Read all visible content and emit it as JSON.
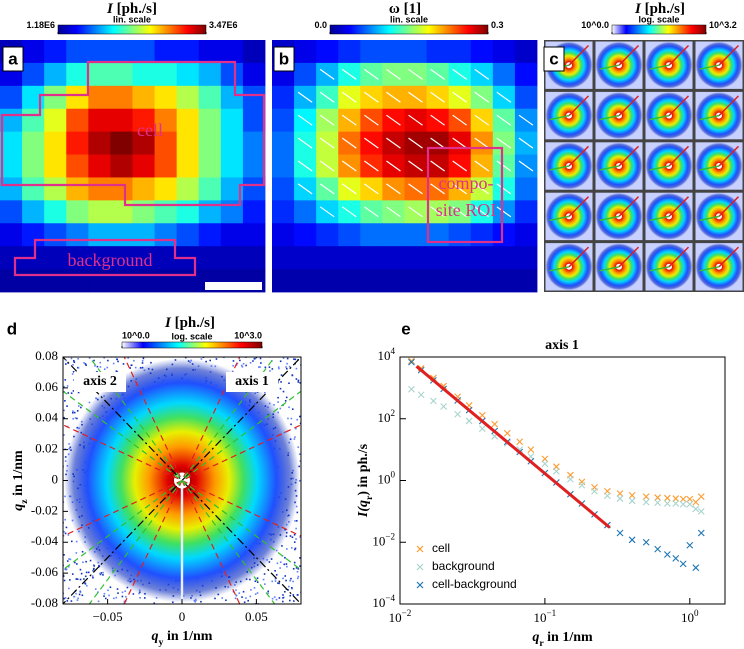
{
  "chart_data": [
    {
      "type": "heatmap",
      "label": "a",
      "colorbar": {
        "title": [
          {
            "text": "I",
            "italic": true
          },
          {
            "text": " [ph./s]"
          }
        ],
        "scale_label": "lin. scale",
        "lim": [
          1180000.0,
          3470000.0
        ],
        "ticks": [
          {
            "value": 1180000.0,
            "label": "1.18E6"
          },
          {
            "value": 3470000.0,
            "label": "3.47E6"
          }
        ]
      },
      "annotations": [
        "cell",
        "background"
      ],
      "values": [
        [
          1290000.0,
          1410000.0,
          1520000.0,
          1640000.0,
          1640000.0,
          1640000.0,
          1640000.0,
          1520000.0,
          1520000.0,
          1410000.0,
          1410000.0,
          1290000.0
        ],
        [
          1410000.0,
          1640000.0,
          1870000.0,
          2100000.0,
          2210000.0,
          2210000.0,
          2100000.0,
          2100000.0,
          1980000.0,
          1870000.0,
          1640000.0,
          1410000.0
        ],
        [
          1640000.0,
          1980000.0,
          2330000.0,
          2670000.0,
          2900000.0,
          2900000.0,
          2780000.0,
          2670000.0,
          2440000.0,
          2210000.0,
          1870000.0,
          1640000.0
        ],
        [
          1870000.0,
          2210000.0,
          2550000.0,
          3010000.0,
          3240000.0,
          3240000.0,
          3130000.0,
          2900000.0,
          2670000.0,
          2330000.0,
          1980000.0,
          1640000.0
        ],
        [
          1980000.0,
          2330000.0,
          2670000.0,
          3130000.0,
          3360000.0,
          3470000.0,
          3360000.0,
          3010000.0,
          2670000.0,
          2330000.0,
          1980000.0,
          1750000.0
        ],
        [
          1980000.0,
          2330000.0,
          2670000.0,
          3010000.0,
          3240000.0,
          3360000.0,
          3240000.0,
          3010000.0,
          2670000.0,
          2330000.0,
          1980000.0,
          1750000.0
        ],
        [
          1870000.0,
          2210000.0,
          2440000.0,
          2780000.0,
          2900000.0,
          2900000.0,
          2780000.0,
          2670000.0,
          2440000.0,
          2210000.0,
          1870000.0,
          1640000.0
        ],
        [
          1640000.0,
          1870000.0,
          2100000.0,
          2330000.0,
          2440000.0,
          2440000.0,
          2330000.0,
          2210000.0,
          2100000.0,
          1870000.0,
          1750000.0,
          1520000.0
        ],
        [
          1410000.0,
          1520000.0,
          1640000.0,
          1750000.0,
          1870000.0,
          1870000.0,
          1870000.0,
          1750000.0,
          1640000.0,
          1520000.0,
          1410000.0,
          1410000.0
        ],
        [
          1290000.0,
          1290000.0,
          1290000.0,
          1290000.0,
          1290000.0,
          1290000.0,
          1290000.0,
          1290000.0,
          1290000.0,
          1290000.0,
          1290000.0,
          1290000.0
        ],
        [
          1230000.0,
          1230000.0,
          1230000.0,
          1230000.0,
          1230000.0,
          1230000.0,
          1230000.0,
          1230000.0,
          1230000.0,
          1230000.0,
          1230000.0,
          1230000.0
        ]
      ]
    },
    {
      "type": "heatmap",
      "label": "b",
      "colorbar": {
        "title": [
          {
            "text": "ω [1]"
          }
        ],
        "scale_label": "lin. scale",
        "lim": [
          0,
          0.3
        ],
        "ticks": [
          {
            "value": 0,
            "label": "0.0"
          },
          {
            "value": 0.3,
            "label": "0.3"
          }
        ]
      },
      "annotations": [
        "compo-",
        "site ROI"
      ],
      "segment_min": 0.08,
      "segment_color": "#ffffff",
      "values": [
        [
          0.02,
          0.03,
          0.04,
          0.05,
          0.06,
          0.06,
          0.06,
          0.05,
          0.05,
          0.04,
          0.03,
          0.02
        ],
        [
          0.03,
          0.06,
          0.09,
          0.12,
          0.14,
          0.15,
          0.15,
          0.14,
          0.12,
          0.1,
          0.07,
          0.04
        ],
        [
          0.05,
          0.09,
          0.13,
          0.18,
          0.2,
          0.21,
          0.21,
          0.2,
          0.18,
          0.15,
          0.1,
          0.06
        ],
        [
          0.06,
          0.11,
          0.16,
          0.21,
          0.24,
          0.26,
          0.27,
          0.26,
          0.24,
          0.2,
          0.14,
          0.08
        ],
        [
          0.07,
          0.12,
          0.17,
          0.23,
          0.26,
          0.28,
          0.29,
          0.29,
          0.27,
          0.22,
          0.15,
          0.09
        ],
        [
          0.07,
          0.12,
          0.17,
          0.22,
          0.25,
          0.27,
          0.28,
          0.28,
          0.26,
          0.21,
          0.14,
          0.08
        ],
        [
          0.06,
          0.1,
          0.14,
          0.18,
          0.2,
          0.22,
          0.23,
          0.23,
          0.21,
          0.17,
          0.12,
          0.07
        ],
        [
          0.05,
          0.07,
          0.1,
          0.12,
          0.14,
          0.15,
          0.16,
          0.16,
          0.15,
          0.12,
          0.08,
          0.05
        ],
        [
          0.03,
          0.04,
          0.05,
          0.06,
          0.07,
          0.07,
          0.07,
          0.07,
          0.06,
          0.05,
          0.04,
          0.03
        ],
        [
          0.02,
          0.02,
          0.02,
          0.02,
          0.02,
          0.02,
          0.02,
          0.02,
          0.02,
          0.02,
          0.02,
          0.02
        ],
        [
          0.01,
          0.01,
          0.01,
          0.01,
          0.01,
          0.01,
          0.01,
          0.01,
          0.01,
          0.01,
          0.01,
          0.01
        ]
      ]
    },
    {
      "type": "image_grid",
      "label": "c",
      "rows": 5,
      "cols": 4,
      "colorbar": {
        "title": [
          {
            "text": "I",
            "italic": true
          },
          {
            "text": " [ph./s]"
          }
        ],
        "scale_label": "log. scale",
        "log": true,
        "lim": [
          1,
          1585
        ],
        "ticks": [
          {
            "value": 1,
            "label": "10^0.0"
          },
          {
            "value": 1585,
            "label": "10^3.2"
          }
        ]
      }
    },
    {
      "type": "image",
      "label": "d",
      "colorbar": {
        "title": [
          {
            "text": "I",
            "italic": true
          },
          {
            "text": " [ph./s]"
          }
        ],
        "scale_label": "log. scale",
        "log": true,
        "lim": [
          1,
          1000
        ],
        "ticks": [
          {
            "value": 1,
            "label": "10^0.0"
          },
          {
            "value": 1000,
            "label": "10^3.0"
          }
        ]
      },
      "xlabel": [
        {
          "text": "q",
          "italic": true
        },
        {
          "text": "y",
          "sub": true
        },
        {
          "text": " in 1/nm"
        }
      ],
      "ylabel": [
        {
          "text": "q",
          "italic": true
        },
        {
          "text": "z",
          "sub": true
        },
        {
          "text": " in 1/nm"
        }
      ],
      "xlim": [
        -0.08,
        0.08
      ],
      "ylim": [
        -0.08,
        0.08
      ],
      "xticks": [
        {
          "value": -0.05,
          "label": "−0.05"
        },
        0,
        0.05
      ],
      "yticks": [
        -0.08,
        -0.06,
        -0.04,
        -0.02,
        0,
        0.02,
        0.04,
        0.06,
        0.08
      ],
      "annotations": [
        "axis 2",
        "axis 1"
      ]
    },
    {
      "type": "scatter",
      "label": "e",
      "title": "axis 1",
      "xlog": true,
      "ylog": true,
      "xlim": [
        0.01,
        1.75
      ],
      "ylim": [
        0.0001,
        10000
      ],
      "xticks": [
        {
          "value": 0.01,
          "label": "10",
          "sup": "−2"
        },
        {
          "value": 0.1,
          "label": "10",
          "sup": "−1"
        },
        {
          "value": 1,
          "label": "10",
          "sup": "0"
        }
      ],
      "yticks": [
        {
          "value": 0.0001,
          "label": "10",
          "sup": "−4"
        },
        {
          "value": 0.01,
          "label": "10",
          "sup": "−2"
        },
        {
          "value": 1,
          "label": "10",
          "sup": "0"
        },
        {
          "value": 100,
          "label": "10",
          "sup": "2"
        },
        {
          "value": 10000,
          "label": "10",
          "sup": "4"
        }
      ],
      "xlabel": [
        {
          "text": "q",
          "italic": true
        },
        {
          "text": "r",
          "sub": true
        },
        {
          "text": " in 1/nm"
        }
      ],
      "ylabel": [
        {
          "text": "I(q",
          "italic": true
        },
        {
          "text": "r",
          "sub": true
        },
        {
          "text": ") in ph./s"
        }
      ],
      "legend": "lower left",
      "x": [
        0.012,
        0.014,
        0.017,
        0.02,
        0.025,
        0.03,
        0.037,
        0.045,
        0.055,
        0.067,
        0.08,
        0.1,
        0.12,
        0.15,
        0.18,
        0.22,
        0.27,
        0.33,
        0.4,
        0.5,
        0.6,
        0.7,
        0.8,
        0.9,
        1.0,
        1.1,
        1.2
      ],
      "series": [
        {
          "name": "cell",
          "color": "#ff9a2e",
          "values": [
            7500,
            4300,
            2100,
            1150,
            520,
            270,
            130,
            67,
            34,
            18,
            10,
            5,
            2.8,
            1.5,
            0.9,
            0.6,
            0.45,
            0.38,
            0.33,
            0.3,
            0.28,
            0.27,
            0.26,
            0.25,
            0.25,
            0.2,
            0.3
          ]
        },
        {
          "name": "background",
          "color": "#a8d4cc",
          "values": [
            900,
            600,
            380,
            250,
            140,
            85,
            48,
            27,
            16,
            10,
            6,
            3.5,
            2,
            1.1,
            0.7,
            0.45,
            0.32,
            0.26,
            0.22,
            0.2,
            0.19,
            0.18,
            0.18,
            0.17,
            0.17,
            0.12,
            0.1
          ]
        },
        {
          "name": "cell-background",
          "color": "#1f77b4",
          "values": [
            6800,
            3750,
            1750,
            930,
            390,
            190,
            85,
            40,
            18,
            8.4,
            4.2,
            1.75,
            0.86,
            0.36,
            0.18,
            0.08,
            0.036,
            0.02,
            0.012,
            0.01,
            0.006,
            0.004,
            0.003,
            0.002,
            0.008,
            0.0015,
            0.02
          ]
        }
      ],
      "fit": {
        "color": "#e02020",
        "x": [
          0.013,
          0.28
        ],
        "values": [
          5000,
          0.03
        ]
      }
    }
  ]
}
